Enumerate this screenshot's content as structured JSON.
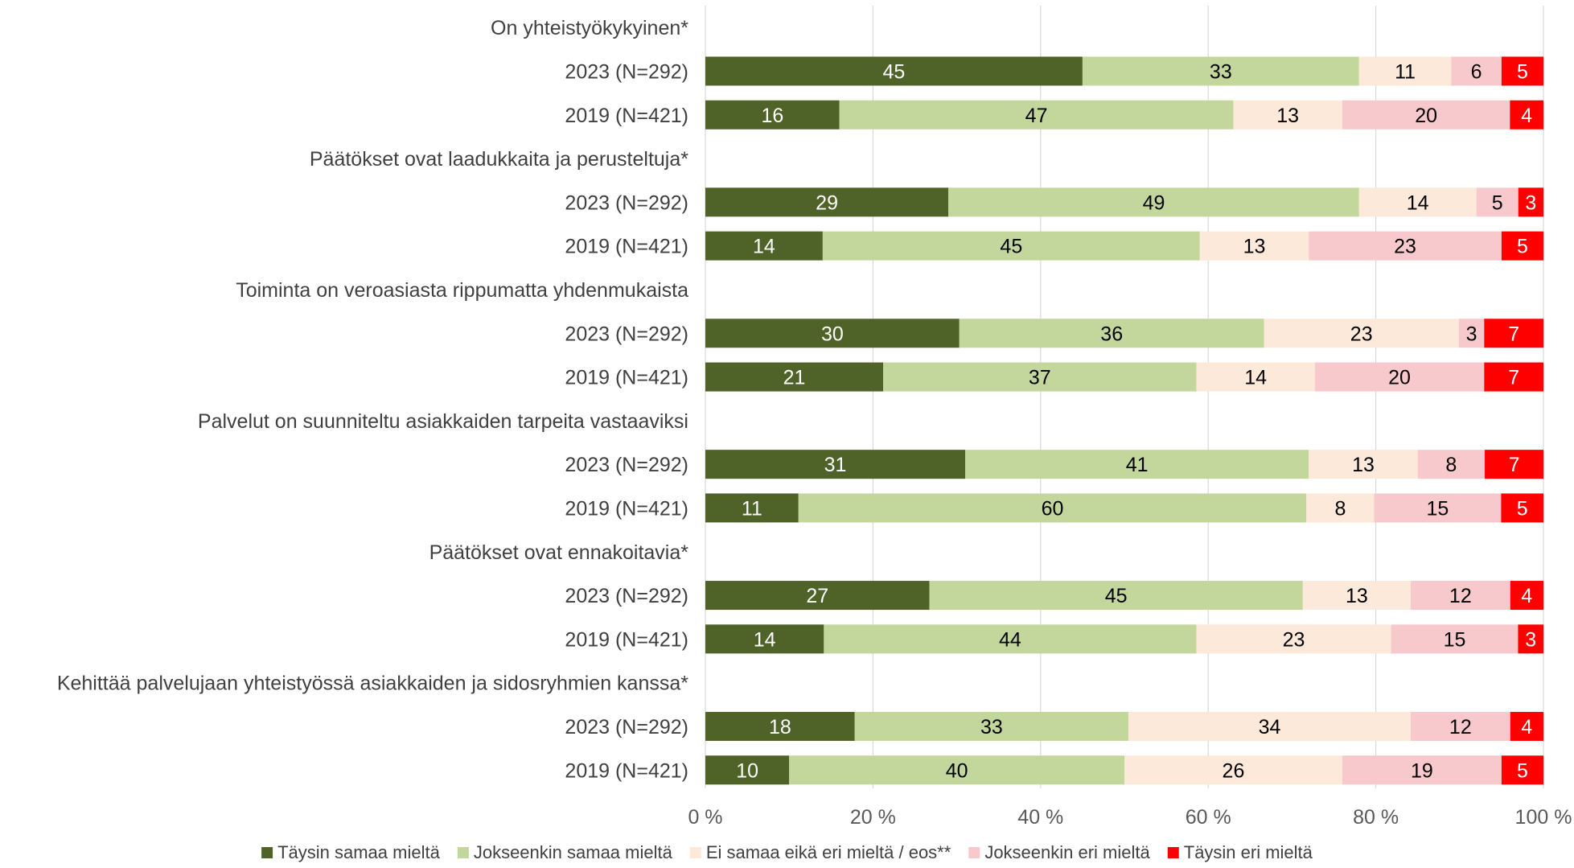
{
  "chart_data": {
    "type": "bar",
    "orientation": "horizontal",
    "stacked": true,
    "grid": true,
    "legend_position": "bottom",
    "x_range": [
      0,
      100
    ],
    "x_ticks": [
      "0 %",
      "20 %",
      "40 %",
      "60 %",
      "80 %",
      "100 %"
    ],
    "series": [
      {
        "name": "Täysin samaa mieltä",
        "color": "#4f6228",
        "text_color": "#ffffff"
      },
      {
        "name": "Jokseenkin samaa mieltä",
        "color": "#c3d69b",
        "text_color": "#000000"
      },
      {
        "name": "Ei samaa eikä eri mieltä / eos**",
        "color": "#fde9d9",
        "text_color": "#000000"
      },
      {
        "name": "Jokseenkin eri mieltä",
        "color": "#f8c9cc",
        "text_color": "#000000"
      },
      {
        "name": "Täysin eri mieltä",
        "color": "#ff0000",
        "text_color": "#ffffff"
      }
    ],
    "groups": [
      {
        "title": "On yhteistyökykyinen*",
        "rows": [
          {
            "label": "2023 (N=292)",
            "values": [
              45,
              33,
              11,
              6,
              5
            ]
          },
          {
            "label": "2019 (N=421)",
            "values": [
              16,
              47,
              13,
              20,
              4
            ]
          }
        ]
      },
      {
        "title": "Päätökset ovat laadukkaita ja perusteltuja*",
        "rows": [
          {
            "label": "2023 (N=292)",
            "values": [
              29,
              49,
              14,
              5,
              3
            ]
          },
          {
            "label": "2019 (N=421)",
            "values": [
              14,
              45,
              13,
              23,
              5
            ]
          }
        ]
      },
      {
        "title": "Toiminta on veroasiasta rippumatta yhdenmukaista",
        "rows": [
          {
            "label": "2023 (N=292)",
            "values": [
              30,
              36,
              23,
              3,
              7
            ]
          },
          {
            "label": "2019 (N=421)",
            "values": [
              21,
              37,
              14,
              20,
              7
            ]
          }
        ]
      },
      {
        "title": "Palvelut on suunniteltu asiakkaiden tarpeita vastaaviksi",
        "rows": [
          {
            "label": "2023 (N=292)",
            "values": [
              31,
              41,
              13,
              8,
              7
            ]
          },
          {
            "label": "2019 (N=421)",
            "values": [
              11,
              60,
              8,
              15,
              5
            ]
          }
        ]
      },
      {
        "title": "Päätökset ovat ennakoitavia*",
        "rows": [
          {
            "label": "2023 (N=292)",
            "values": [
              27,
              45,
              13,
              12,
              4
            ]
          },
          {
            "label": "2019 (N=421)",
            "values": [
              14,
              44,
              23,
              15,
              3
            ]
          }
        ]
      },
      {
        "title": "Kehittää palvelujaan yhteistyössä asiakkaiden ja sidosryhmien kanssa*",
        "rows": [
          {
            "label": "2023 (N=292)",
            "values": [
              18,
              33,
              34,
              12,
              4
            ]
          },
          {
            "label": "2019 (N=421)",
            "values": [
              10,
              40,
              26,
              19,
              5
            ]
          }
        ]
      }
    ]
  }
}
